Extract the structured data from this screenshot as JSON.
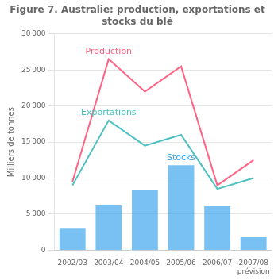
{
  "chart_data": {
    "type": "bar",
    "title": "Figure 7. Australie: production, exportations et\nstocks du blé",
    "y_label": "Milliers de tonnes",
    "categories": [
      "2002/03",
      "2003/04",
      "2004/05",
      "2005/06",
      "2006/07",
      "2007/08\nprévision"
    ],
    "series": [
      {
        "name": "Stocks",
        "type": "bar",
        "values": [
          3000,
          6200,
          8300,
          11800,
          6100,
          1800
        ]
      },
      {
        "name": "Production",
        "type": "line",
        "values": [
          9500,
          26500,
          22000,
          25500,
          9000,
          12500
        ]
      },
      {
        "name": "Exportations",
        "type": "line",
        "values": [
          9000,
          18000,
          14500,
          16000,
          8500,
          10000
        ]
      }
    ],
    "ylim": [
      0,
      30000
    ],
    "yticks": [
      0,
      {
        "value": 5000,
        "label": "5 000"
      },
      {
        "value": 10000,
        "label": "10 000"
      },
      {
        "value": 15000,
        "label": "15 000"
      },
      {
        "value": 20000,
        "label": "20 000"
      },
      {
        "value": 25000,
        "label": "25 000"
      },
      {
        "value": 30000,
        "label": "30 000"
      }
    ],
    "grid": true
  }
}
